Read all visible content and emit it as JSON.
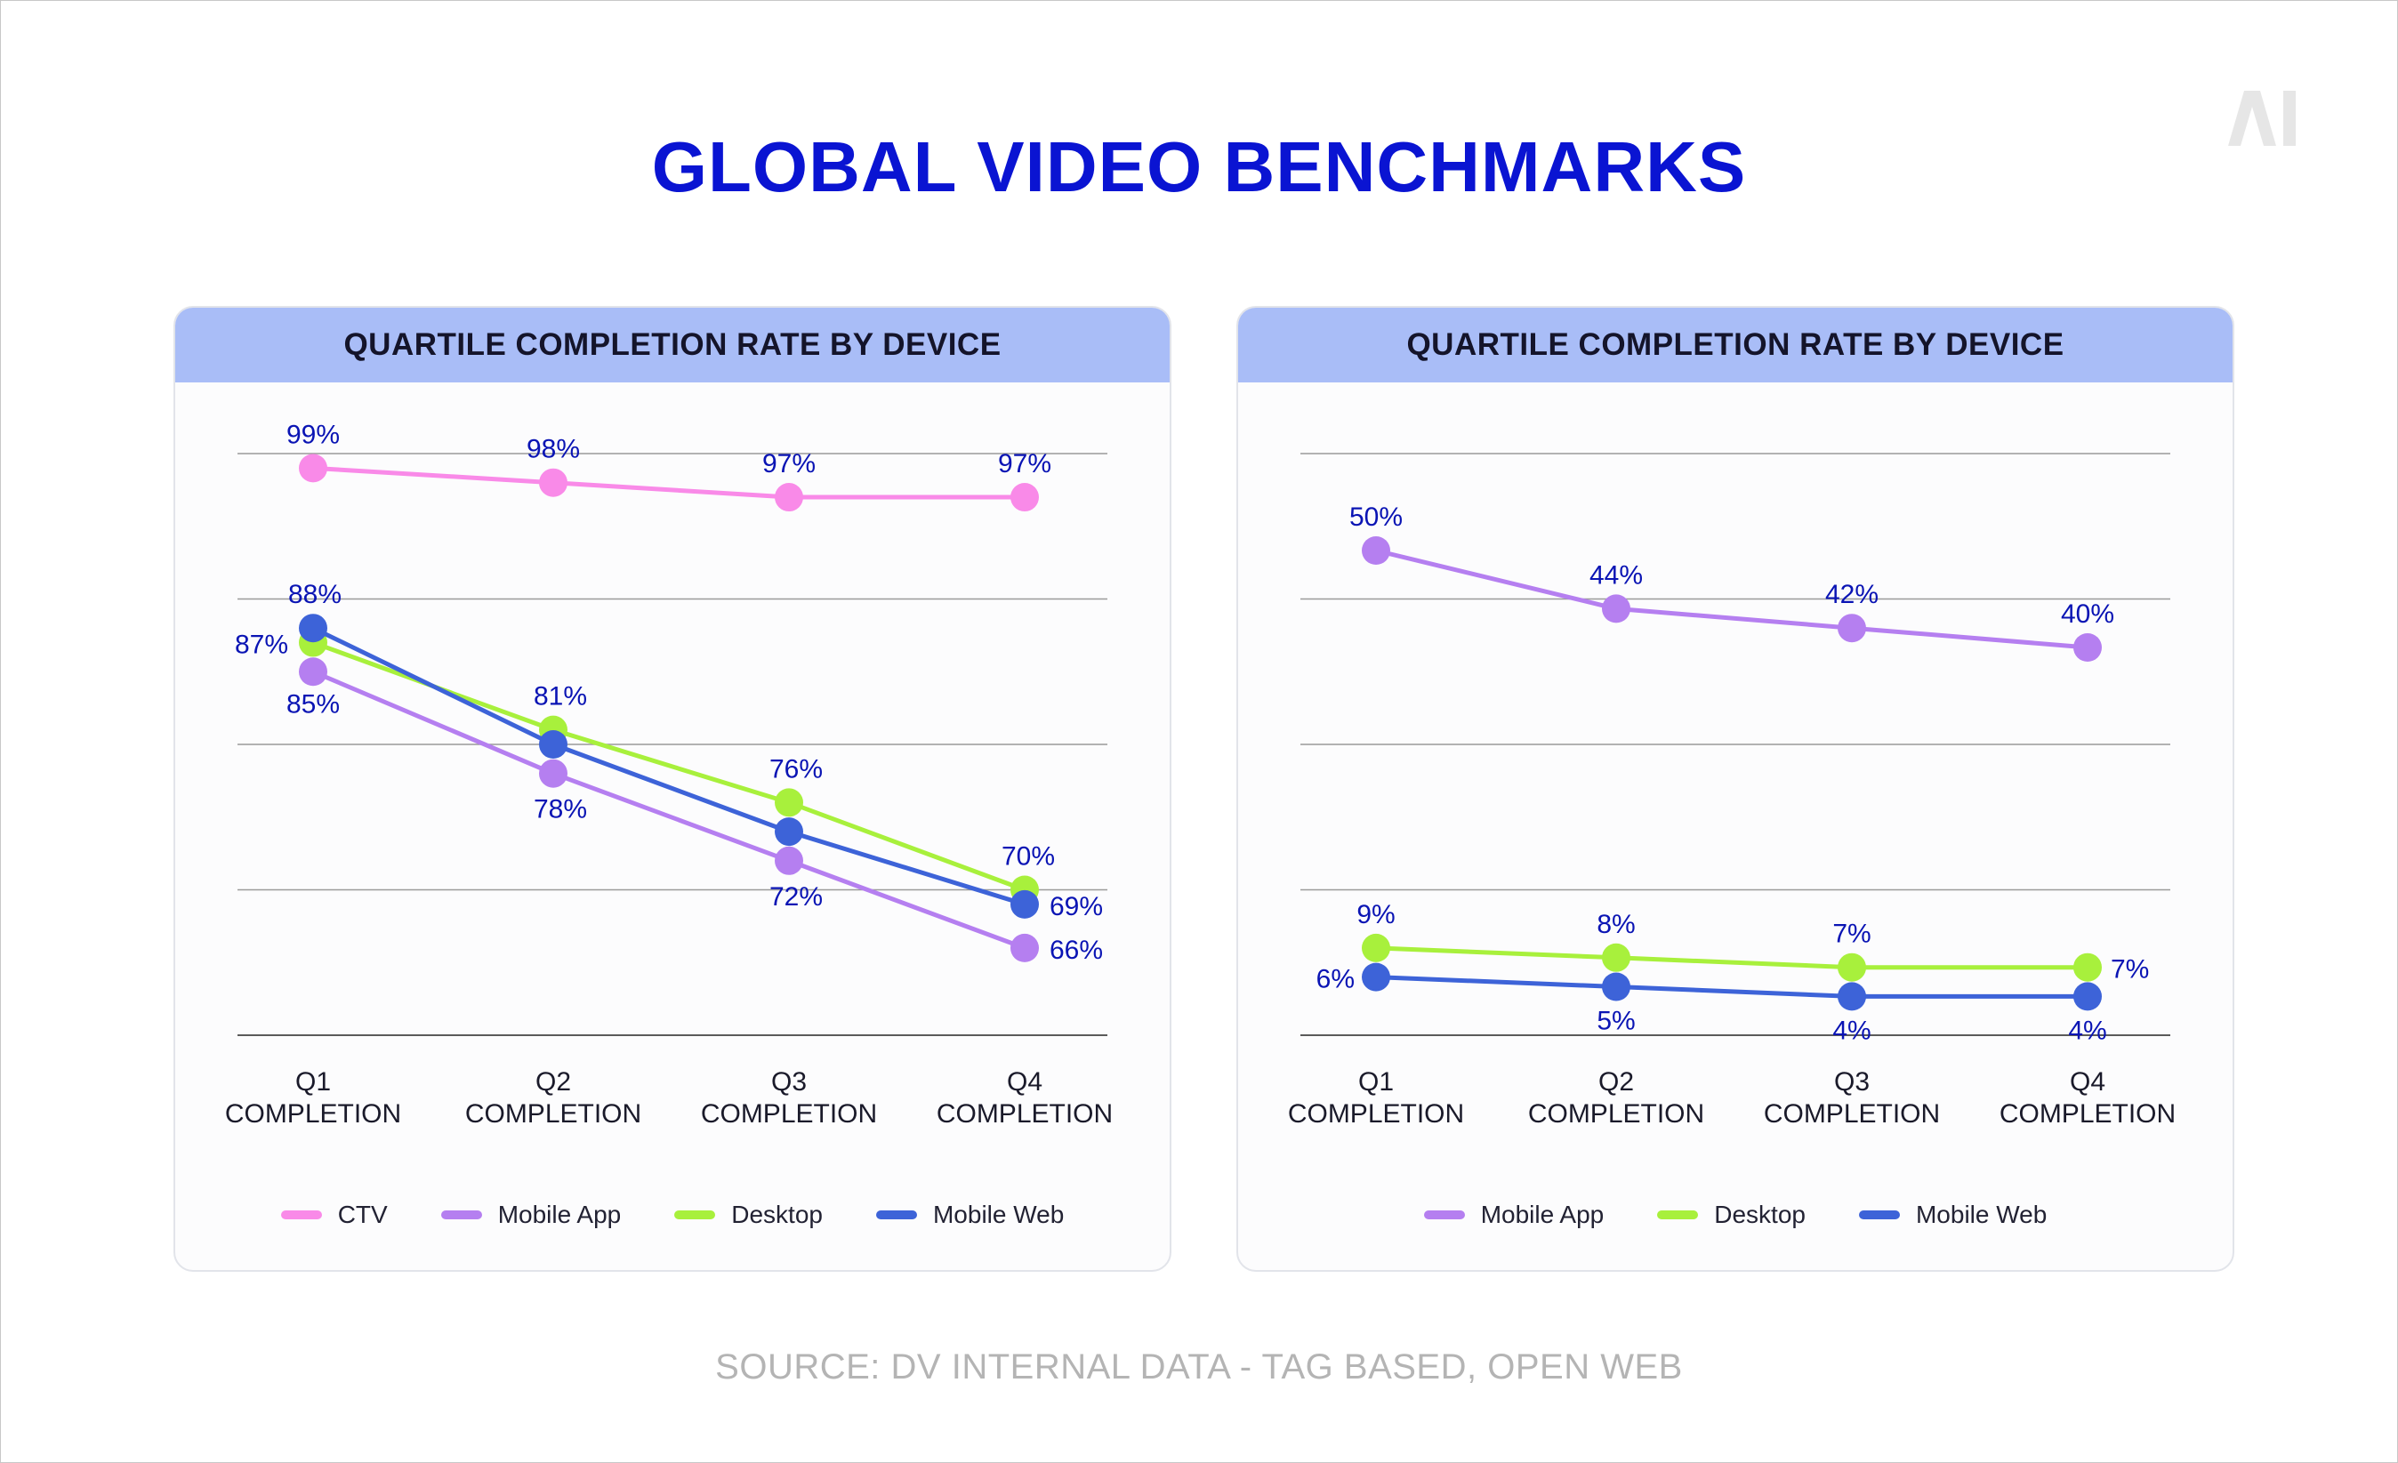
{
  "title": "GLOBAL VIDEO BENCHMARKS",
  "logo_text": "AI",
  "source": "SOURCE: DV INTERNAL DATA - TAG BASED, OPEN WEB",
  "chart_data": [
    {
      "type": "line",
      "title": "QUARTILE COMPLETION RATE BY DEVICE",
      "categories": [
        "Q1 COMPLETION",
        "Q2 COMPLETION",
        "Q3 COMPLETION",
        "Q4 COMPLETION"
      ],
      "ylim": [
        60,
        100
      ],
      "grid": true,
      "legend_position": "bottom",
      "series": [
        {
          "name": "CTV",
          "color": "#f98ae8",
          "values": [
            99,
            98,
            97,
            97
          ],
          "labels": [
            "99%",
            "98%",
            "97%",
            "97%"
          ]
        },
        {
          "name": "Mobile App",
          "color": "#b57ff0",
          "values": [
            85,
            78,
            72,
            66
          ],
          "labels": [
            "85%",
            "78%",
            "72%",
            "66%"
          ]
        },
        {
          "name": "Desktop",
          "color": "#a8f03c",
          "values": [
            87,
            81,
            76,
            70
          ],
          "labels": [
            "87%",
            "81%",
            "76%",
            "70%"
          ]
        },
        {
          "name": "Mobile Web",
          "color": "#3d63d8",
          "values": [
            88,
            80,
            74,
            69
          ],
          "labels": [
            "88%",
            "",
            "",
            "69%"
          ]
        }
      ]
    },
    {
      "type": "line",
      "title": "QUARTILE COMPLETION RATE BY DEVICE",
      "categories": [
        "Q1 COMPLETION",
        "Q2 COMPLETION",
        "Q3 COMPLETION",
        "Q4 COMPLETION"
      ],
      "ylim": [
        0,
        60
      ],
      "grid": true,
      "legend_position": "bottom",
      "series": [
        {
          "name": "Mobile App",
          "color": "#b57ff0",
          "values": [
            50,
            44,
            42,
            40
          ],
          "labels": [
            "50%",
            "44%",
            "42%",
            "40%"
          ]
        },
        {
          "name": "Desktop",
          "color": "#a8f03c",
          "values": [
            9,
            8,
            7,
            7
          ],
          "labels": [
            "9%",
            "8%",
            "7%",
            "7%"
          ]
        },
        {
          "name": "Mobile Web",
          "color": "#3d63d8",
          "values": [
            6,
            5,
            4,
            4
          ],
          "labels": [
            "6%",
            "5%",
            "4%",
            "4%"
          ]
        }
      ]
    }
  ]
}
